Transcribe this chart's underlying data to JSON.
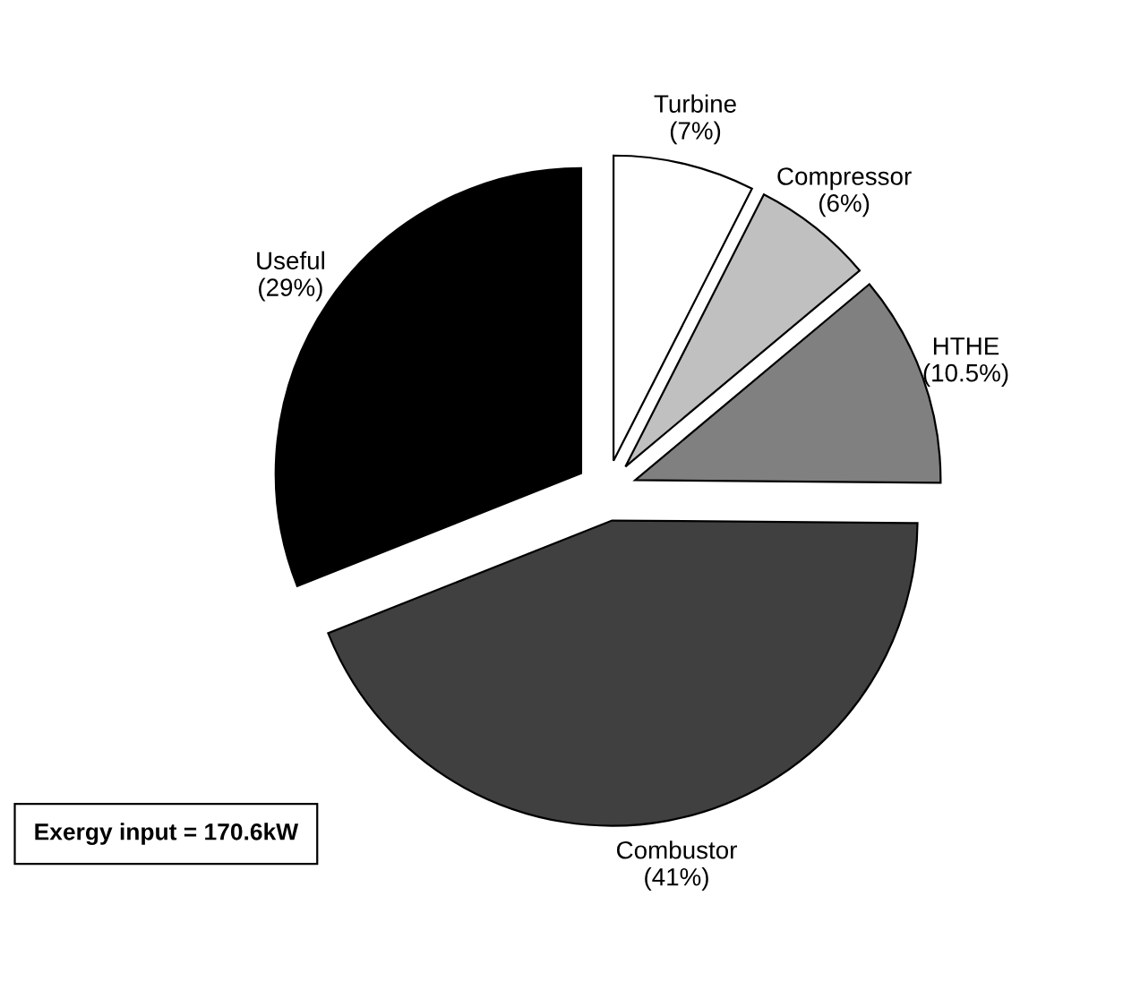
{
  "chart_data": {
    "type": "pie",
    "categories": [
      "Turbine",
      "Compressor",
      "HTHE",
      "Combustor",
      "Useful"
    ],
    "values": [
      7,
      6,
      10.5,
      41,
      29
    ],
    "value_labels": [
      "(7%)",
      "(6%)",
      "(10.5%)",
      "(41%)",
      "(29%)"
    ],
    "colors": [
      "#ffffff",
      "#c0c0c0",
      "#808080",
      "#404040",
      "#000000"
    ],
    "annotations": [
      "Exergy input = 170.6kW"
    ]
  }
}
